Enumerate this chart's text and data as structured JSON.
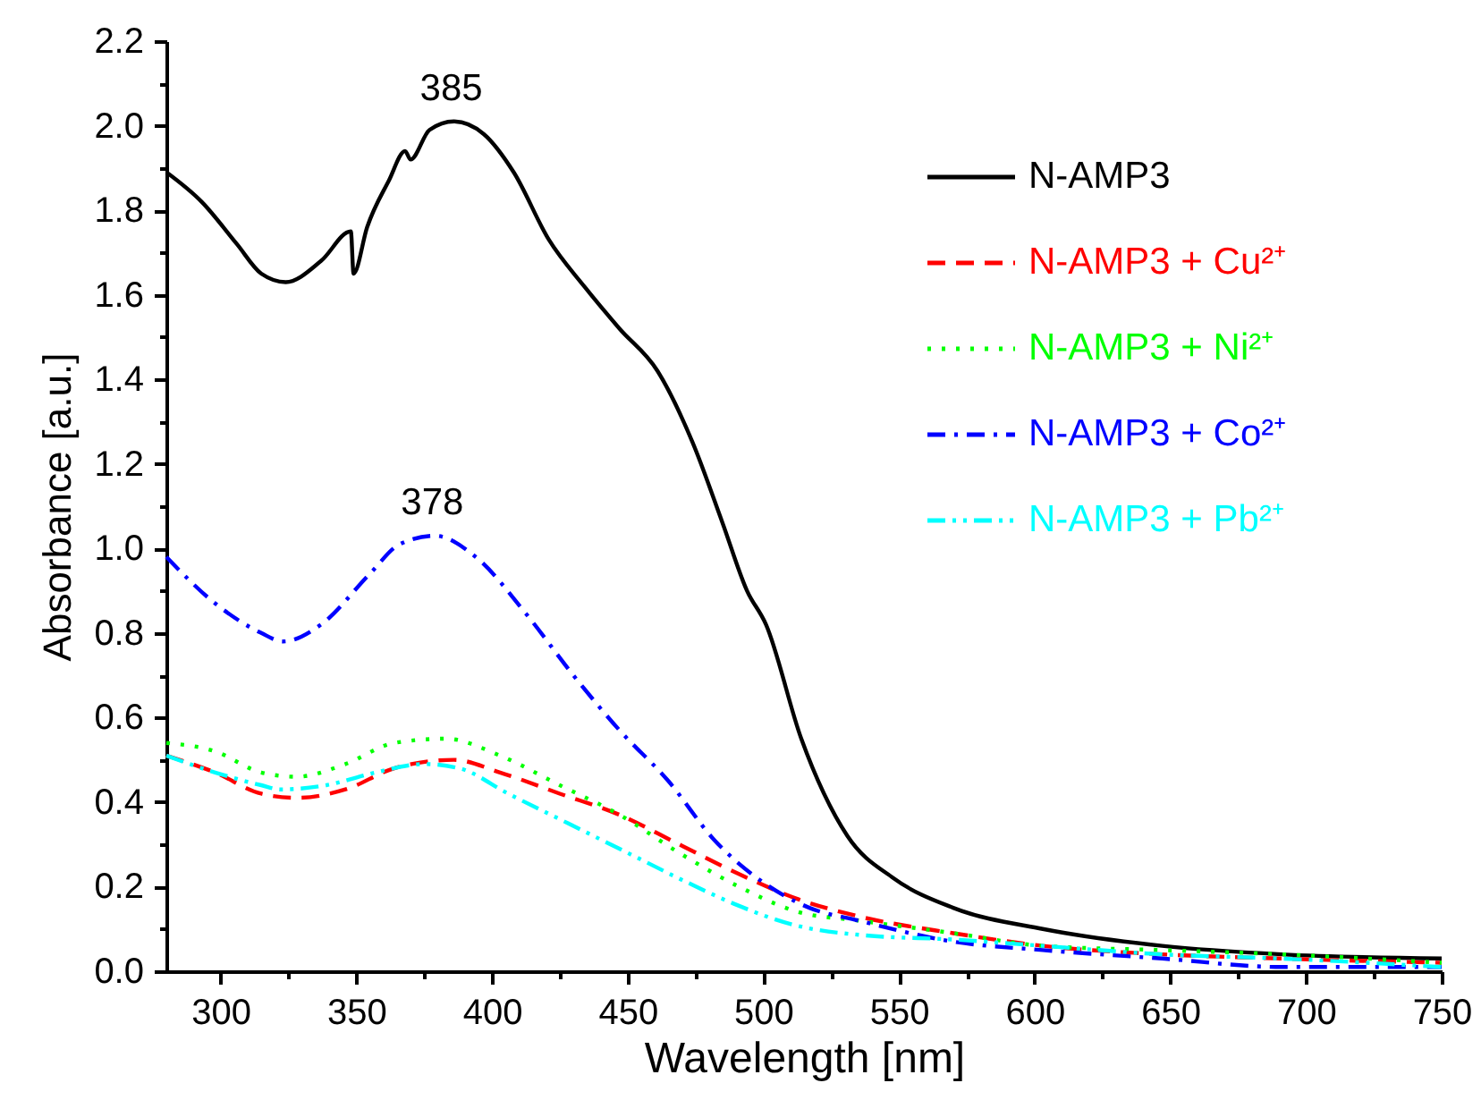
{
  "chart_data": {
    "type": "line",
    "xlabel": "Wavelength [nm]",
    "ylabel": "Absorbance [a.u.]",
    "xlim": [
      280,
      750
    ],
    "ylim": [
      0,
      2.2
    ],
    "xticks": [
      300,
      {
        "value": 325,
        "label": null
      },
      350,
      {
        "value": 375,
        "label": null
      },
      400,
      {
        "value": 425,
        "label": null
      },
      450,
      {
        "value": 475,
        "label": null
      },
      500,
      {
        "value": 525,
        "label": null
      },
      550,
      {
        "value": 575,
        "label": null
      },
      600,
      {
        "value": 625,
        "label": null
      },
      650,
      {
        "value": 675,
        "label": null
      },
      700,
      {
        "value": 725,
        "label": null
      },
      750
    ],
    "yticks": [
      {
        "value": 0,
        "label": "0.0"
      },
      {
        "value": 0.1,
        "label": null
      },
      {
        "value": 0.2,
        "label": "0.2"
      },
      {
        "value": 0.3,
        "label": null
      },
      {
        "value": 0.4,
        "label": "0.4"
      },
      {
        "value": 0.5,
        "label": null
      },
      {
        "value": 0.6,
        "label": "0.6"
      },
      {
        "value": 0.7,
        "label": null
      },
      {
        "value": 0.8,
        "label": "0.8"
      },
      {
        "value": 0.9,
        "label": null
      },
      {
        "value": 1.0,
        "label": "1.0"
      },
      {
        "value": 1.1,
        "label": null
      },
      {
        "value": 1.2,
        "label": "1.2"
      },
      {
        "value": 1.3,
        "label": null
      },
      {
        "value": 1.4,
        "label": "1.4"
      },
      {
        "value": 1.5,
        "label": null
      },
      {
        "value": 1.6,
        "label": "1.6"
      },
      {
        "value": 1.7,
        "label": null
      },
      {
        "value": 1.8,
        "label": "1.8"
      },
      {
        "value": 1.9,
        "label": null
      },
      {
        "value": 2.0,
        "label": "2.0"
      },
      {
        "value": 2.1,
        "label": null
      },
      {
        "value": 2.2,
        "label": "2.2"
      }
    ],
    "grid": false,
    "legend": "top right",
    "annotations": [
      {
        "text": "385",
        "x": 385,
        "y": 2.01
      },
      {
        "text": "378",
        "x": 378,
        "y": 1.03
      }
    ],
    "series": [
      {
        "name": "N-AMP3",
        "color": "#000000",
        "line_style": "solid",
        "x": [
          280,
          293,
          306,
          315,
          324,
          337,
          348,
          349,
          354,
          362,
          368,
          370,
          377,
          386,
          397,
          408,
          421,
          434,
          447,
          461,
          474,
          485,
          494,
          501,
          514,
          531,
          548,
          570,
          603,
          647,
          691,
          750
        ],
        "values": [
          1.89,
          1.82,
          1.72,
          1.65,
          1.63,
          1.68,
          1.75,
          1.65,
          1.76,
          1.87,
          1.94,
          1.92,
          1.99,
          2.01,
          1.98,
          1.89,
          1.73,
          1.62,
          1.52,
          1.42,
          1.25,
          1.06,
          0.9,
          0.82,
          0.55,
          0.32,
          0.22,
          0.15,
          0.1,
          0.06,
          0.04,
          0.03
        ]
      },
      {
        "name": "N-AMP3 + Cu²⁺",
        "color": "#ff0000",
        "line_style": "dashed",
        "x": [
          280,
          298,
          315,
          328,
          346,
          364,
          386,
          403,
          425,
          447,
          469,
          491,
          513,
          535,
          570,
          603,
          647,
          691,
          750
        ],
        "values": [
          0.51,
          0.47,
          0.42,
          0.41,
          0.43,
          0.48,
          0.5,
          0.47,
          0.42,
          0.37,
          0.3,
          0.23,
          0.17,
          0.13,
          0.09,
          0.06,
          0.04,
          0.03,
          0.02
        ]
      },
      {
        "name": "N-AMP3 + Ni²⁺",
        "color": "#00ff00",
        "line_style": "dotted",
        "x": [
          280,
          298,
          315,
          328,
          346,
          364,
          383,
          403,
          425,
          447,
          469,
          491,
          513,
          535,
          570,
          603,
          647,
          691,
          750
        ],
        "values": [
          0.54,
          0.52,
          0.47,
          0.46,
          0.49,
          0.54,
          0.55,
          0.51,
          0.44,
          0.37,
          0.28,
          0.2,
          0.14,
          0.12,
          0.09,
          0.06,
          0.05,
          0.04,
          0.02
        ]
      },
      {
        "name": "N-AMP3 + Co²⁺",
        "color": "#0000ff",
        "line_style": "dashdot",
        "x": [
          280,
          298,
          315,
          323,
          337,
          355,
          366,
          379,
          394,
          412,
          430,
          447,
          465,
          482,
          500,
          517,
          535,
          570,
          603,
          647,
          691,
          750
        ],
        "values": [
          0.98,
          0.87,
          0.8,
          0.78,
          0.82,
          0.94,
          1.01,
          1.03,
          0.98,
          0.85,
          0.7,
          0.57,
          0.45,
          0.31,
          0.21,
          0.15,
          0.12,
          0.07,
          0.05,
          0.03,
          0.01,
          0.01
        ]
      },
      {
        "name": "N-AMP3 + Pb²⁺",
        "color": "#00ffff",
        "line_style": "dashdotdot",
        "x": [
          280,
          298,
          315,
          322,
          339,
          357,
          375,
          388,
          406,
          428,
          450,
          472,
          489,
          511,
          537,
          570,
          603,
          647,
          691,
          750
        ],
        "values": [
          0.51,
          0.47,
          0.44,
          0.43,
          0.44,
          0.47,
          0.49,
          0.48,
          0.42,
          0.35,
          0.28,
          0.21,
          0.16,
          0.11,
          0.085,
          0.075,
          0.06,
          0.04,
          0.03,
          0.01
        ]
      }
    ]
  }
}
